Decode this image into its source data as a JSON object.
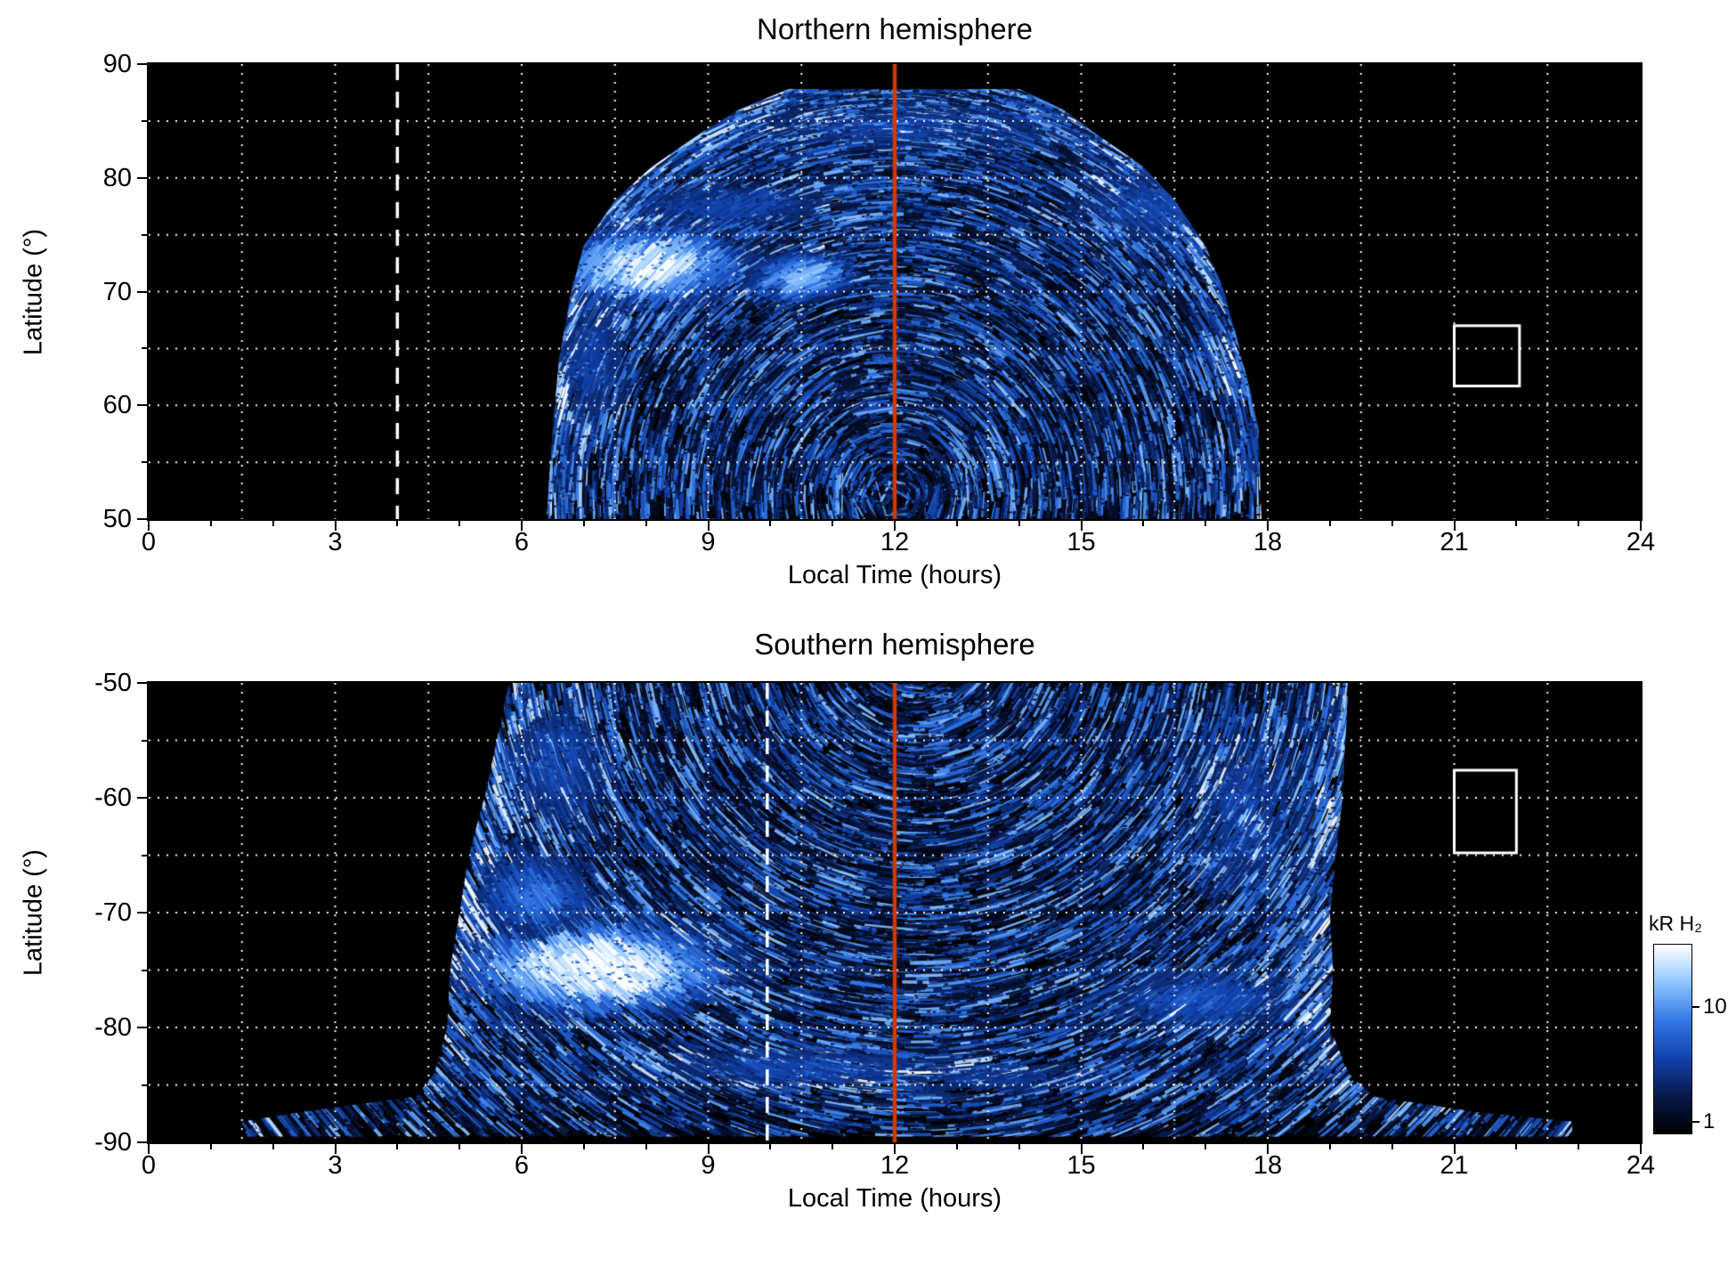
{
  "chart_data": {
    "type": "heatmap",
    "colormap": [
      "#000000",
      "#081a4d",
      "#1243ae",
      "#3379e6",
      "#8ec5ff",
      "#ffffff"
    ],
    "colorbar": {
      "title": "kR H₂",
      "scale": "log",
      "vmin": 0.8,
      "vmax": 35,
      "ticks": [
        {
          "value": 10,
          "label": "10"
        },
        {
          "value": 1,
          "label": "1"
        }
      ]
    },
    "panels": [
      {
        "id": "north",
        "title": "Northern hemisphere",
        "xlabel": "Local Time (hours)",
        "ylabel": "Latitude (°)",
        "xlim": [
          0,
          24
        ],
        "ylim": [
          50,
          90
        ],
        "xticks": [
          {
            "value": 0,
            "label": "0"
          },
          {
            "value": 3,
            "label": "3"
          },
          {
            "value": 6,
            "label": "6"
          },
          {
            "value": 9,
            "label": "9"
          },
          {
            "value": 12,
            "label": "12"
          },
          {
            "value": 15,
            "label": "15"
          },
          {
            "value": 18,
            "label": "18"
          },
          {
            "value": 21,
            "label": "21"
          },
          {
            "value": 24,
            "label": "24"
          }
        ],
        "yticks": [
          {
            "value": 90,
            "label": "90"
          },
          {
            "value": 80,
            "label": "80"
          },
          {
            "value": 70,
            "label": "70"
          },
          {
            "value": 60,
            "label": "60"
          },
          {
            "value": 50,
            "label": "50"
          }
        ],
        "grid": {
          "x_step": 1.5,
          "y_step": 5,
          "color": "#ffffff"
        },
        "annotations": {
          "noon_line": {
            "x": 12,
            "color": "#cc3b00"
          },
          "dashed_line": {
            "x": 4.0,
            "color": "#ffffff"
          },
          "box": {
            "lt": [
              21.0,
              22.05
            ],
            "lat": [
              61.7,
              67.0
            ],
            "color": "#ffffff"
          }
        },
        "emission": {
          "seed": 11,
          "streaks": 13000,
          "speckle": 4200,
          "edge_boost": 0.45,
          "arc_center": [
            12,
            52
          ],
          "coverage": "dayside dome of emission ~06:24-17:54 LT at 50° latitude, narrowing to ~10:18-14:06 LT near 88°",
          "profile": [
            [
              50,
              6.4,
              17.9
            ],
            [
              58,
              6.5,
              17.85
            ],
            [
              64,
              6.6,
              17.6
            ],
            [
              70,
              6.8,
              17.3
            ],
            [
              74,
              7.0,
              17.0
            ],
            [
              78,
              7.5,
              16.5
            ],
            [
              81,
              8.1,
              16.0
            ],
            [
              84,
              8.9,
              15.2
            ],
            [
              86,
              9.5,
              14.7
            ],
            [
              87.8,
              10.3,
              14.0
            ]
          ],
          "bright_spots": [
            {
              "lt": 8.0,
              "lat": 72.3,
              "rlt": 1.2,
              "rlat": 2.4,
              "strength": 1.05
            },
            {
              "lt": 10.5,
              "lat": 71.3,
              "rlt": 0.6,
              "rlat": 1.5,
              "strength": 0.9
            },
            {
              "lt": 7.1,
              "lat": 64.0,
              "rlt": 0.55,
              "rlat": 6.0,
              "strength": 0.4
            },
            {
              "lt": 16.3,
              "lat": 77.5,
              "rlt": 1.3,
              "rlat": 3.0,
              "strength": 0.45
            },
            {
              "lt": 12.2,
              "lat": 84.5,
              "rlt": 2.6,
              "rlat": 1.8,
              "strength": 0.4
            },
            {
              "lt": 9.3,
              "lat": 77.5,
              "rlt": 1.6,
              "rlat": 1.6,
              "strength": 0.45
            }
          ]
        }
      },
      {
        "id": "south",
        "title": "Southern hemisphere",
        "xlabel": "Local Time (hours)",
        "ylabel": "Latitude (°)",
        "xlim": [
          0,
          24
        ],
        "ylim": [
          -90,
          -50
        ],
        "xticks": [
          {
            "value": 0,
            "label": "0"
          },
          {
            "value": 3,
            "label": "3"
          },
          {
            "value": 6,
            "label": "6"
          },
          {
            "value": 9,
            "label": "9"
          },
          {
            "value": 12,
            "label": "12"
          },
          {
            "value": 15,
            "label": "15"
          },
          {
            "value": 18,
            "label": "18"
          },
          {
            "value": 21,
            "label": "21"
          },
          {
            "value": 24,
            "label": "24"
          }
        ],
        "yticks": [
          {
            "value": -50,
            "label": "-50"
          },
          {
            "value": -60,
            "label": "-60"
          },
          {
            "value": -70,
            "label": "-70"
          },
          {
            "value": -80,
            "label": "-80"
          },
          {
            "value": -90,
            "label": "-90"
          }
        ],
        "grid": {
          "x_step": 1.5,
          "y_step": 5,
          "color": "#ffffff"
        },
        "annotations": {
          "noon_line": {
            "x": 12,
            "color": "#cc3b00"
          },
          "dashed_line": {
            "x": 9.95,
            "color": "#ffffff"
          },
          "box": {
            "lt": [
              21.0,
              22.0
            ],
            "lat": [
              -64.8,
              -57.6
            ],
            "color": "#ffffff"
          }
        },
        "emission": {
          "seed": 23,
          "streaks": 16000,
          "speckle": 5200,
          "edge_boost": 0.5,
          "arc_center": [
            12.4,
            -46
          ],
          "coverage": "emission ~05:48-19:18 LT from -50° to -86°, plus thin band ~01:30-23:00 LT near -88.5°; bright white patch ~06:00-08:30 LT at -71° to -78°",
          "profile": [
            [
              -50,
              5.8,
              19.3
            ],
            [
              -55,
              5.6,
              19.25
            ],
            [
              -60,
              5.4,
              19.2
            ],
            [
              -65,
              5.15,
              19.1
            ],
            [
              -70,
              5.0,
              19.0
            ],
            [
              -75,
              4.85,
              19.05
            ],
            [
              -80,
              4.8,
              19.0
            ],
            [
              -84,
              4.6,
              19.3
            ],
            [
              -86,
              4.3,
              19.7
            ],
            [
              -87.4,
              2.4,
              21.4
            ],
            [
              -88.2,
              1.5,
              22.9
            ],
            [
              -89.5,
              1.5,
              22.9
            ]
          ],
          "bright_spots": [
            {
              "lt": 7.2,
              "lat": -74.8,
              "rlt": 1.6,
              "rlat": 3.0,
              "strength": 1.15
            },
            {
              "lt": 6.2,
              "lat": -68.5,
              "rlt": 0.8,
              "rlat": 2.8,
              "strength": 0.6
            },
            {
              "lt": 6.6,
              "lat": -57.0,
              "rlt": 0.7,
              "rlat": 5.5,
              "strength": 0.45
            },
            {
              "lt": 17.6,
              "lat": -61.0,
              "rlt": 0.9,
              "rlat": 6.5,
              "strength": 0.4
            },
            {
              "lt": 16.9,
              "lat": -77.5,
              "rlt": 1.4,
              "rlat": 2.2,
              "strength": 0.5
            },
            {
              "lt": 10.5,
              "lat": -83.5,
              "rlt": 2.2,
              "rlat": 1.6,
              "strength": 0.45
            },
            {
              "lt": 13.5,
              "lat": -84.5,
              "rlt": 2.0,
              "rlat": 1.4,
              "strength": 0.35
            }
          ]
        }
      }
    ]
  }
}
